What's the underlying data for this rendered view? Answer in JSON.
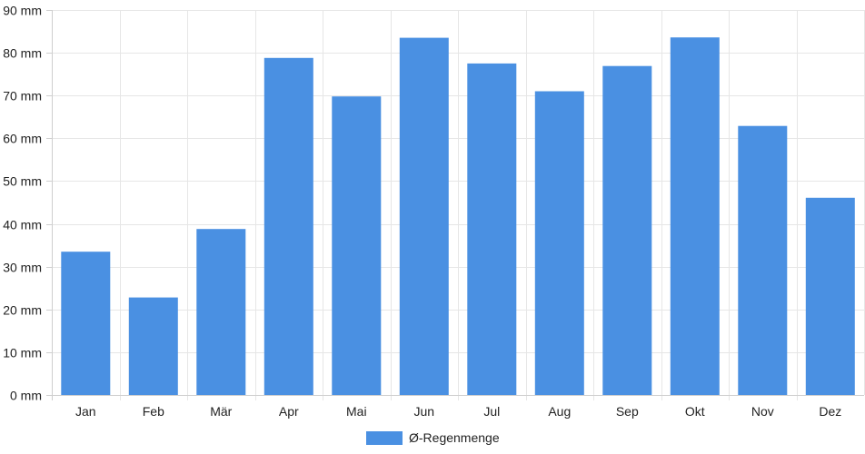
{
  "chart_data": {
    "type": "bar",
    "categories": [
      "Jan",
      "Feb",
      "Mär",
      "Apr",
      "Mai",
      "Jun",
      "Jul",
      "Aug",
      "Sep",
      "Okt",
      "Nov",
      "Dez"
    ],
    "series": [
      {
        "name": "Ø-Regenmenge",
        "values": [
          33.5,
          22.8,
          38.8,
          78.8,
          69.8,
          83.5,
          77.5,
          71.0,
          76.9,
          83.6,
          62.9,
          46.1
        ],
        "color": "#4a90e2"
      }
    ],
    "y_ticks": [
      "0 mm",
      "10 mm",
      "20 mm",
      "30 mm",
      "40 mm",
      "50 mm",
      "60 mm",
      "70 mm",
      "80 mm",
      "90 mm"
    ],
    "ylim": [
      0,
      90
    ],
    "ytick_step": 10,
    "grid": true,
    "legend_position": "bottom-center"
  }
}
